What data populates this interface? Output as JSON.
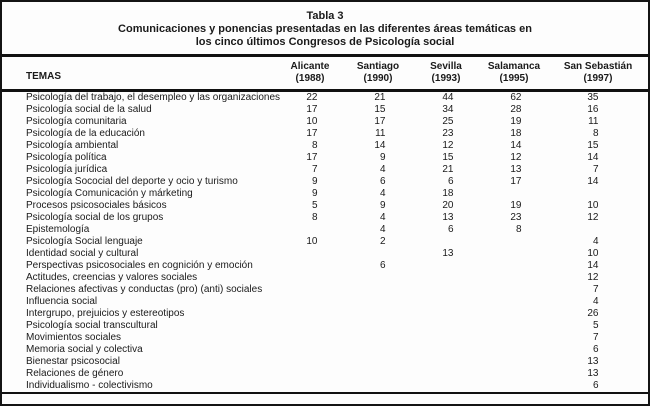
{
  "table": {
    "title": "Tabla 3",
    "subtitle_line1": "Comunicaciones y ponencias presentadas en las diferentes áreas temáticas en",
    "subtitle_line2": "los cinco últimos Congresos de Psicología social",
    "temas_header": "TEMAS",
    "congresses": [
      {
        "city": "Alicante",
        "year": "(1988)"
      },
      {
        "city": "Santiago",
        "year": "(1990)"
      },
      {
        "city": "Sevilla",
        "year": "(1993)"
      },
      {
        "city": "Salamanca",
        "year": "(1995)"
      },
      {
        "city": "San Sebastián",
        "year": "(1997)"
      }
    ],
    "rows": [
      {
        "tema": "Psicología del trabajo, el desempleo y las organizaciones",
        "values": [
          "22",
          "21",
          "44",
          "62",
          "35"
        ]
      },
      {
        "tema": "Psicología social de la salud",
        "values": [
          "17",
          "15",
          "34",
          "28",
          "16"
        ]
      },
      {
        "tema": "Psicología comunitaria",
        "values": [
          "10",
          "17",
          "25",
          "19",
          "11"
        ]
      },
      {
        "tema": "Psicología de la educación",
        "values": [
          "17",
          "11",
          "23",
          "18",
          "8"
        ]
      },
      {
        "tema": "Psicología ambiental",
        "values": [
          "8",
          "14",
          "12",
          "14",
          "15"
        ]
      },
      {
        "tema": "Psicología política",
        "values": [
          "17",
          "9",
          "15",
          "12",
          "14"
        ]
      },
      {
        "tema": "Psicología jurídica",
        "values": [
          "7",
          "4",
          "21",
          "13",
          "7"
        ]
      },
      {
        "tema": "Psicología Sococial del deporte y ocio y turismo",
        "values": [
          "9",
          "6",
          "6",
          "17",
          "14"
        ]
      },
      {
        "tema": "Psicología Comunicación y márketing",
        "values": [
          "9",
          "4",
          "18",
          "",
          ""
        ]
      },
      {
        "tema": "Procesos psicosociales básicos",
        "values": [
          "5",
          "9",
          "20",
          "19",
          "10"
        ]
      },
      {
        "tema": "Psicología social de los grupos",
        "values": [
          "8",
          "4",
          "13",
          "23",
          "12"
        ]
      },
      {
        "tema": "Epistemología",
        "values": [
          "",
          "4",
          "6",
          "8",
          ""
        ]
      },
      {
        "tema": "Psicología Social lenguaje",
        "values": [
          "10",
          "2",
          "",
          "",
          "4"
        ]
      },
      {
        "tema": "Identidad social y cultural",
        "values": [
          "",
          "",
          "13",
          "",
          "10"
        ]
      },
      {
        "tema": "Perspectivas psicosociales en cognición y emoción",
        "values": [
          "",
          "6",
          "",
          "",
          "14"
        ]
      },
      {
        "tema": "Actitudes, creencias y valores sociales",
        "values": [
          "",
          "",
          "",
          "",
          "12"
        ]
      },
      {
        "tema": "Relaciones afectivas y conductas (pro) (anti) sociales",
        "values": [
          "",
          "",
          "",
          "",
          "7"
        ]
      },
      {
        "tema": "Influencia social",
        "values": [
          "",
          "",
          "",
          "",
          "4"
        ]
      },
      {
        "tema": "Intergrupo, prejuicios y estereotipos",
        "values": [
          "",
          "",
          "",
          "",
          "26"
        ]
      },
      {
        "tema": "Psicología social transcultural",
        "values": [
          "",
          "",
          "",
          "",
          "5"
        ]
      },
      {
        "tema": "Movimientos sociales",
        "values": [
          "",
          "",
          "",
          "",
          "7"
        ]
      },
      {
        "tema": "Memoria social y colectiva",
        "values": [
          "",
          "",
          "",
          "",
          "6"
        ]
      },
      {
        "tema": "Bienestar psicosocial",
        "values": [
          "",
          "",
          "",
          "",
          "13"
        ]
      },
      {
        "tema": "Relaciones de género",
        "values": [
          "",
          "",
          "",
          "",
          "13"
        ]
      },
      {
        "tema": "Individualismo - colectivismo",
        "values": [
          "",
          "",
          "",
          "",
          "6"
        ]
      }
    ]
  }
}
